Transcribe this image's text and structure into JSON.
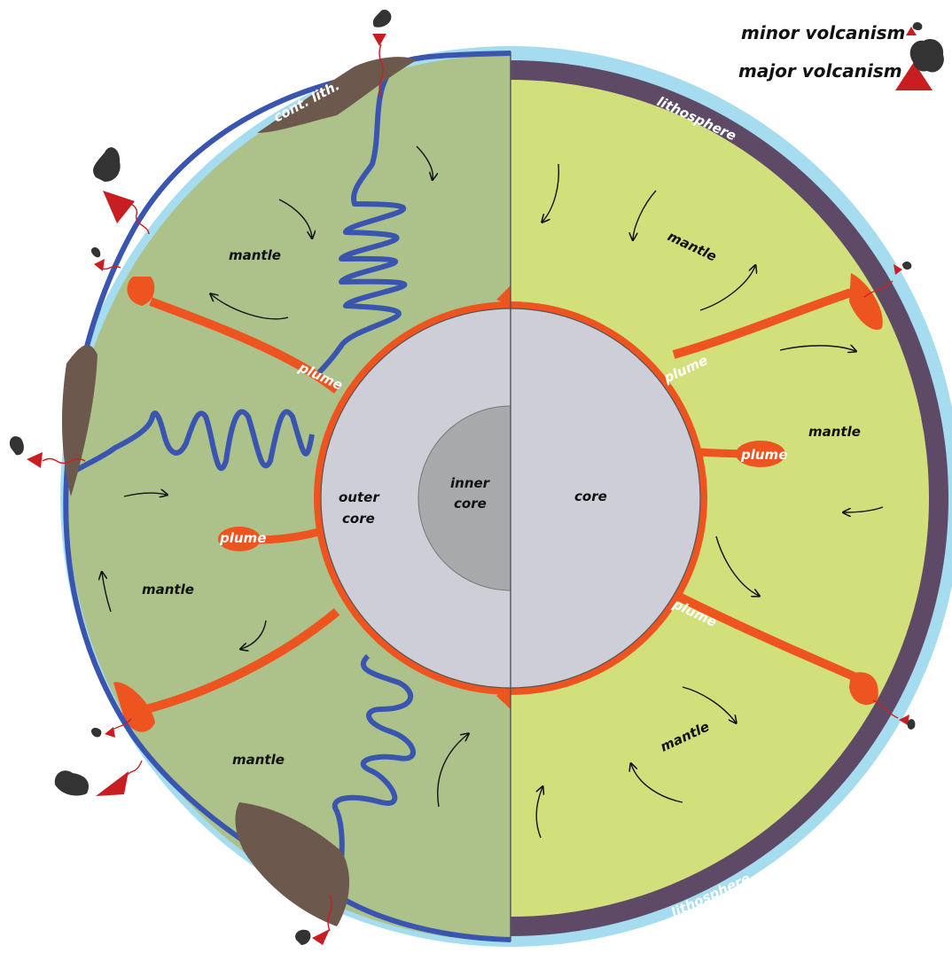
{
  "legend": {
    "minor": "minor volcanism",
    "major": "major volcanism"
  },
  "left": {
    "cont_lith": "cont. lith.",
    "mantle": "mantle",
    "plume": "plume",
    "outer_core": [
      "outer",
      "core"
    ],
    "inner_core": [
      "inner",
      "core"
    ]
  },
  "right": {
    "lithosphere": "lithosphere",
    "mantle": "mantle",
    "plume": "plume",
    "core": "core"
  },
  "colors": {
    "ocean_ring": "#a6dcef",
    "lithosphere": "#5e4a67",
    "mantle_left": "#adc28a",
    "mantle_right": "#d2e07c",
    "plume": "#ee5420",
    "core": "#cdced7",
    "inner_core": "#a7a9aa",
    "slab": "#3a55b0",
    "continent": "#6d584d",
    "volcano": "#c81e22",
    "ash": "#333333"
  }
}
